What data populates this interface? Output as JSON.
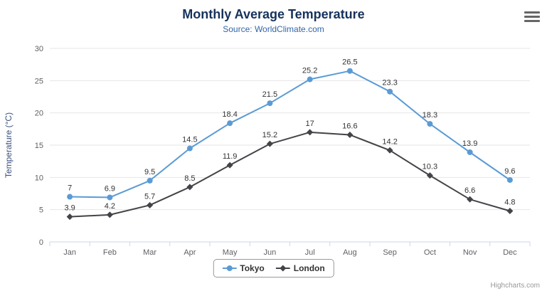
{
  "chart_data": {
    "type": "line",
    "title": "Monthly Average Temperature",
    "subtitle": "Source: WorldClimate.com",
    "categories": [
      "Jan",
      "Feb",
      "Mar",
      "Apr",
      "May",
      "Jun",
      "Jul",
      "Aug",
      "Sep",
      "Oct",
      "Nov",
      "Dec"
    ],
    "series": [
      {
        "name": "Tokyo",
        "marker": "circle",
        "color": "#5b9bd5",
        "values": [
          7,
          6.9,
          9.5,
          14.5,
          18.4,
          21.5,
          25.2,
          26.5,
          23.3,
          18.3,
          13.9,
          9.6
        ]
      },
      {
        "name": "London",
        "marker": "diamond",
        "color": "#434348",
        "values": [
          3.9,
          4.2,
          5.7,
          8.5,
          11.9,
          15.2,
          17,
          16.6,
          14.2,
          10.3,
          6.6,
          4.8
        ]
      }
    ],
    "xlabel": "",
    "ylabel": "Temperature (°C)",
    "ylim": [
      0,
      30
    ],
    "yticks": [
      0,
      5,
      10,
      15,
      20,
      25,
      30
    ],
    "grid": true,
    "legend_position": "bottom-center"
  },
  "colors": {
    "title": "#16325c",
    "subtitle": "#3366a8",
    "axis_labels": "#606063",
    "y_axis_title": "#39517e",
    "grid": "#e6e6e6",
    "axis_line": "#ccd6eb",
    "data_label": "#333333",
    "legend_border": "#999999",
    "credits": "#999999",
    "menu_icon": "#666666"
  },
  "credits": "Highcharts.com"
}
